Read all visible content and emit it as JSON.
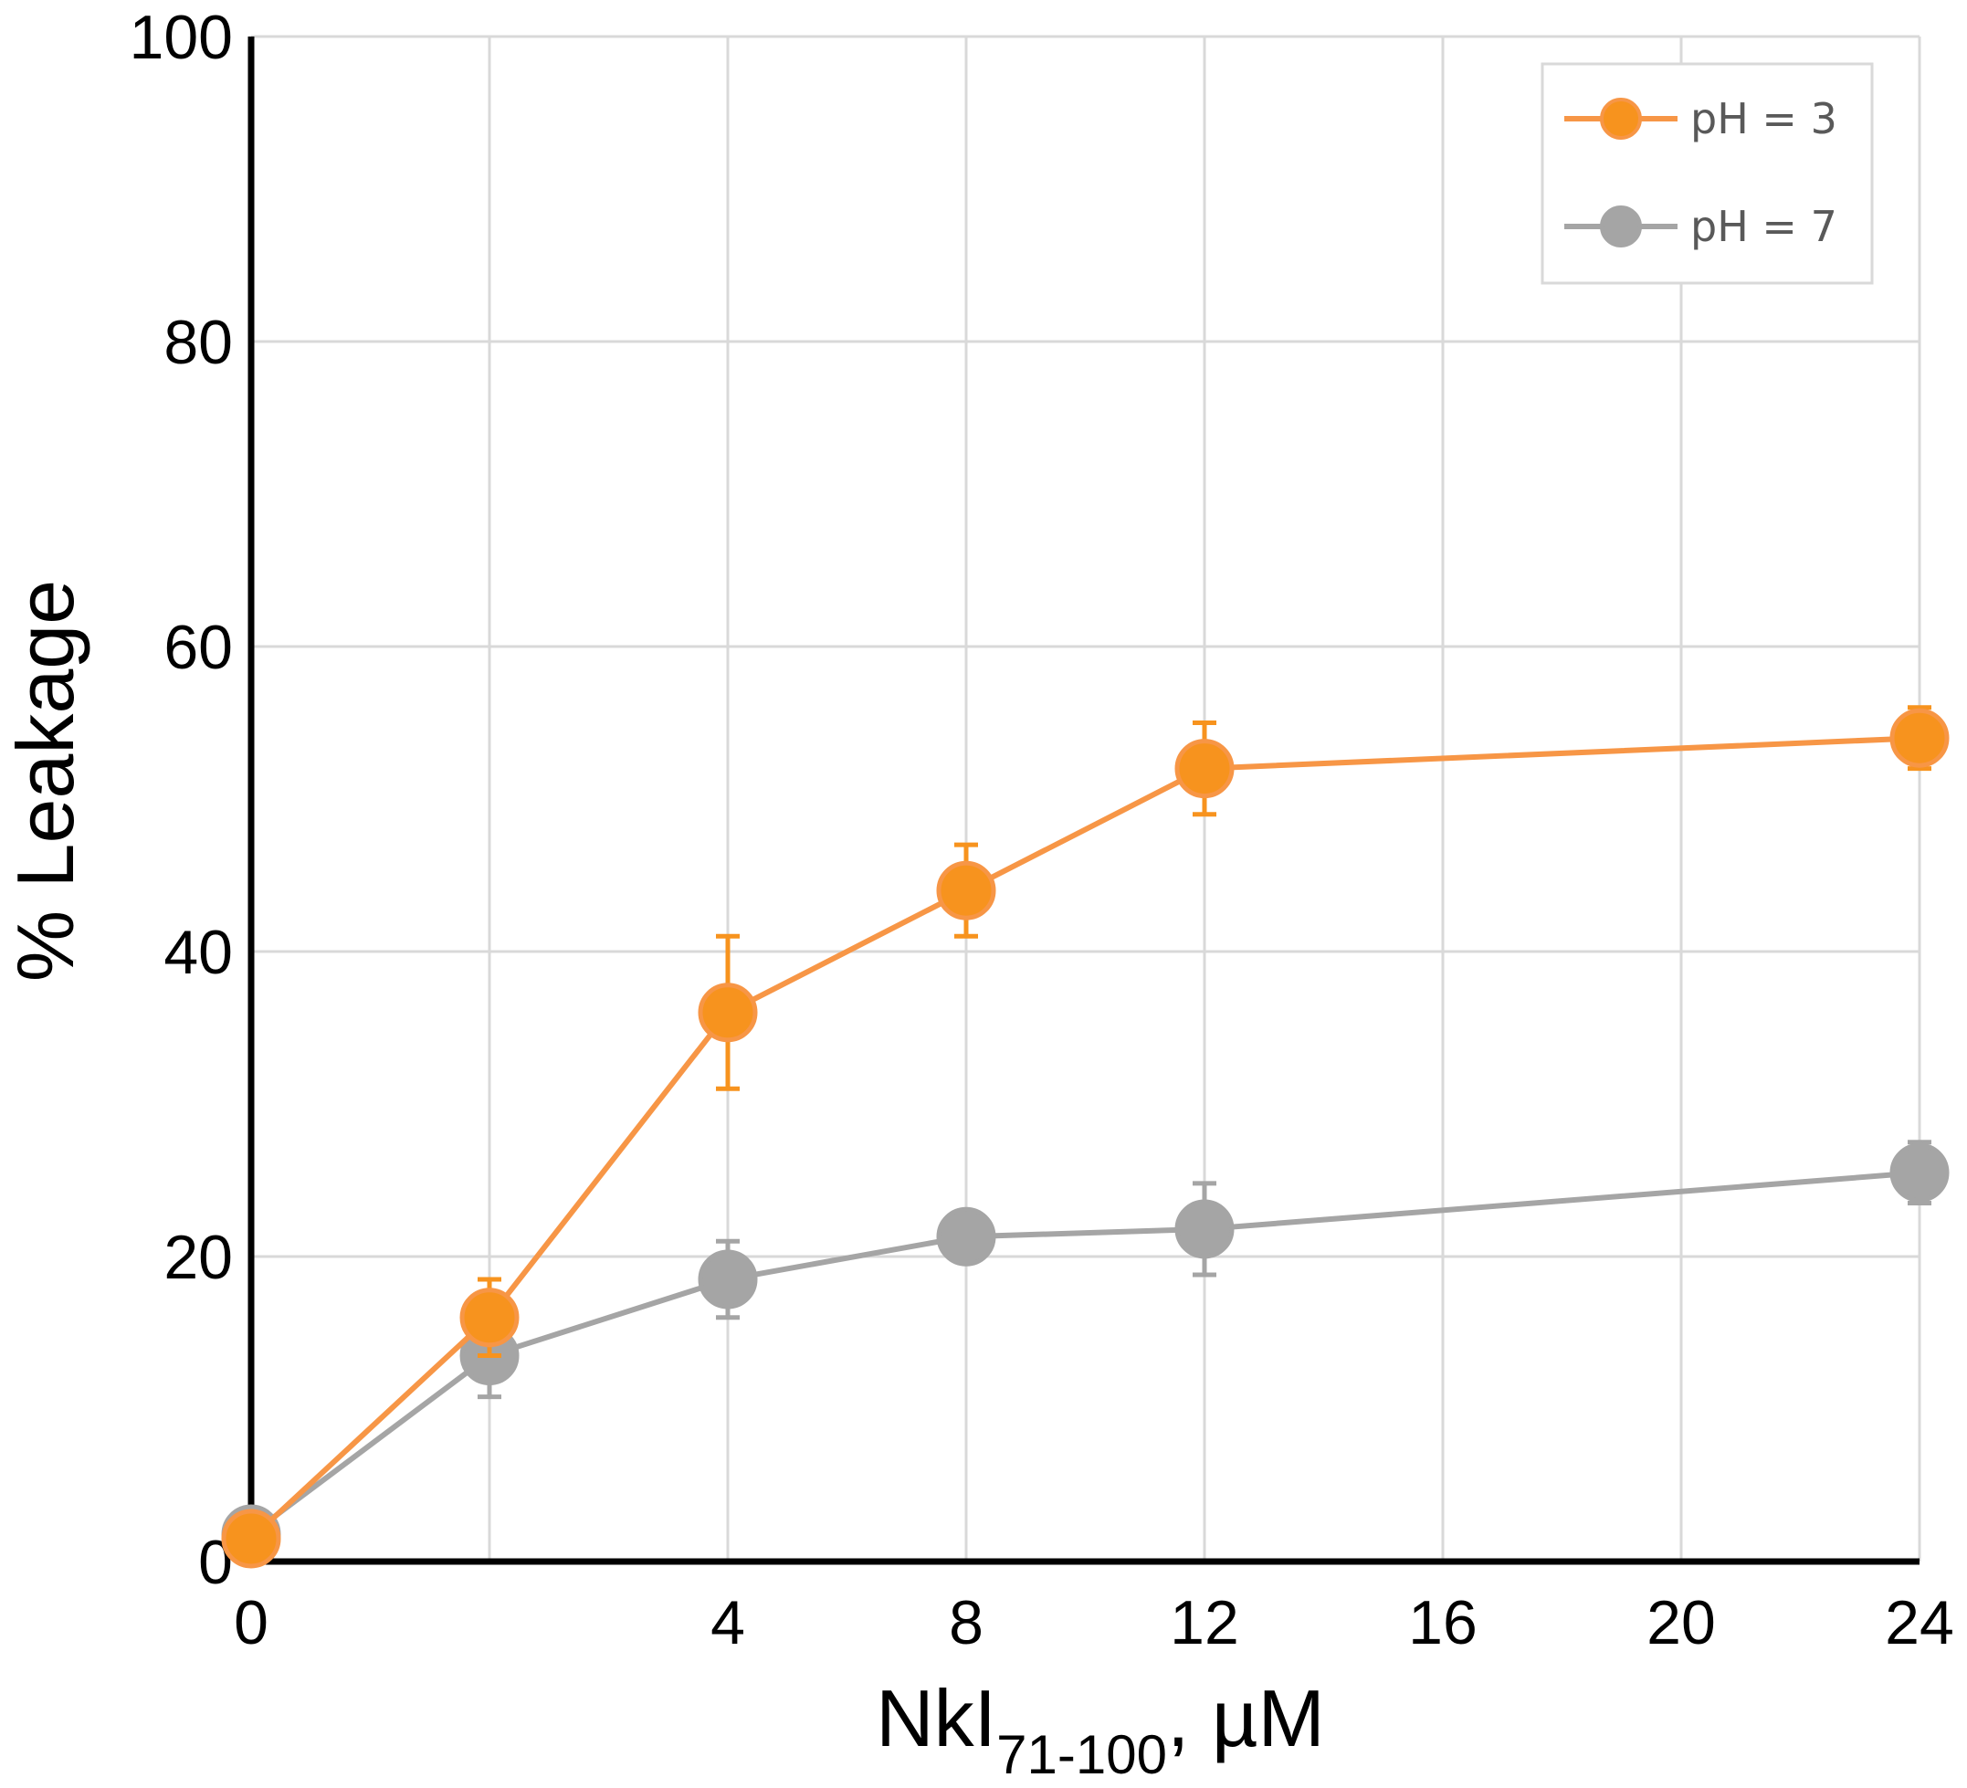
{
  "chart_data": {
    "type": "line",
    "title": "",
    "ylabel": "% Leakage",
    "xlabel": {
      "main": "NkI",
      "subscript": "71-100",
      "suffix": ", µM"
    },
    "x_tick_labels": [
      "0",
      "4",
      "8",
      "12",
      "16",
      "20",
      "24"
    ],
    "y_tick_labels": [
      "0",
      "20",
      "40",
      "60",
      "80",
      "100"
    ],
    "ylim": [
      0,
      100
    ],
    "grid": true,
    "legend_position": "top-right",
    "x_axis_note": "categorical spacing: 0,2,4,8,12,16,20,24 equally spaced",
    "x_positions": [
      "0",
      "2",
      "4",
      "8",
      "12",
      "16",
      "20",
      "24"
    ],
    "series": [
      {
        "name": "pH = 3",
        "color": "#F79646",
        "marker_color": "#F7931E",
        "x": [
          "0",
          "2",
          "4",
          "8",
          "12",
          "24"
        ],
        "values": [
          1.5,
          16,
          36,
          44,
          52,
          54
        ],
        "errors": [
          0,
          2.5,
          5,
          3,
          3,
          2
        ]
      },
      {
        "name": "pH = 7",
        "color": "#A5A5A5",
        "marker_color": "#A5A5A5",
        "x": [
          "0",
          "2",
          "4",
          "8",
          "12",
          "24"
        ],
        "values": [
          1.8,
          13.5,
          18.5,
          21.3,
          21.8,
          25.5
        ],
        "errors": [
          0,
          2.7,
          2.5,
          0,
          3,
          2
        ]
      }
    ]
  }
}
